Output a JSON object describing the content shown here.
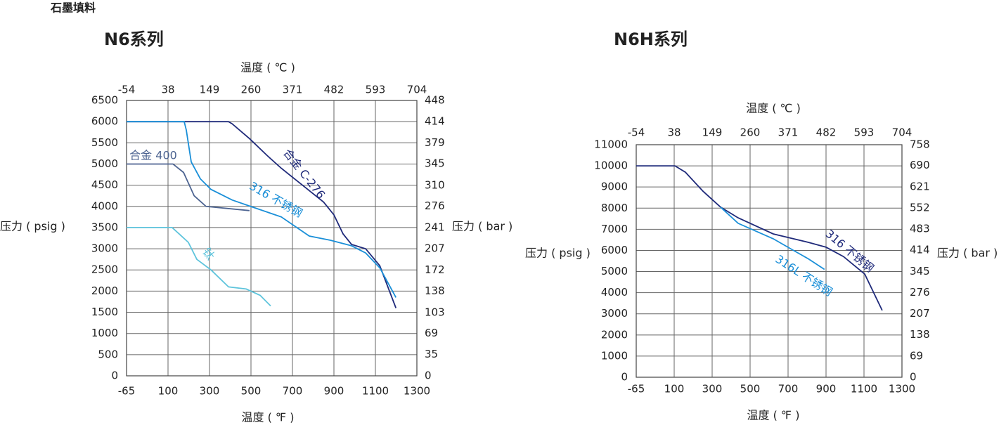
{
  "page_title": "石墨填料",
  "chart_data": [
    {
      "type": "line",
      "title": "N6系列",
      "x_label": "温度 ( ℉ )",
      "x2_label": "温度 ( ℃ )",
      "y_label": "压力 ( psig )",
      "y2_label": "压力 ( bar )",
      "xlim": [
        -65,
        1300
      ],
      "xticks": [
        -65,
        100,
        300,
        500,
        700,
        900,
        1100,
        1300
      ],
      "x2lim": [
        -54,
        704
      ],
      "x2ticks": [
        -54,
        38,
        149,
        260,
        371,
        482,
        593,
        704
      ],
      "ylim": [
        0,
        6500
      ],
      "yticks": [
        0,
        500,
        1000,
        1500,
        2000,
        2500,
        3000,
        3500,
        4000,
        4500,
        5000,
        5500,
        6000,
        6500
      ],
      "y2lim": [
        0,
        448
      ],
      "y2ticks": [
        0,
        35,
        69,
        103,
        138,
        172,
        207,
        241,
        276,
        310,
        345,
        379,
        414,
        448
      ],
      "grid": true,
      "series": [
        {
          "name": "合金 C-276",
          "color": "#1f2a7a",
          "x": [
            -65,
            392,
            409,
            493,
            578,
            646,
            748,
            850,
            900,
            944,
            985,
            1053,
            1121,
            1199
          ],
          "values": [
            6000,
            6000,
            5950,
            5600,
            5200,
            4900,
            4500,
            4100,
            3800,
            3350,
            3100,
            3000,
            2600,
            1600
          ]
        },
        {
          "name": "316 不锈钢",
          "color": "#1a8fd8",
          "x": [
            -65,
            178,
            188,
            212,
            256,
            307,
            409,
            510,
            646,
            781,
            883,
            985,
            1053,
            1121,
            1199
          ],
          "values": [
            6000,
            6000,
            5800,
            5050,
            4650,
            4400,
            4150,
            3980,
            3750,
            3300,
            3200,
            3070,
            2900,
            2550,
            1850
          ]
        },
        {
          "name": "合金 400",
          "color": "#4d6491",
          "x": [
            -65,
            124,
            175,
            226,
            283,
            493
          ],
          "values": [
            5000,
            5000,
            4800,
            4250,
            4000,
            3900
          ]
        },
        {
          "name": "钛",
          "color": "#5ec4dc",
          "x": [
            -65,
            120,
            198,
            239,
            307,
            392,
            477,
            544,
            595
          ],
          "values": [
            3500,
            3500,
            3150,
            2750,
            2500,
            2100,
            2050,
            1900,
            1650
          ]
        }
      ]
    },
    {
      "type": "line",
      "title": "N6H系列",
      "x_label": "温度 ( ℉ )",
      "x2_label": "温度 ( ℃ )",
      "y_label": "压力 ( psig )",
      "y2_label": "压力 ( bar )",
      "xlim": [
        -65,
        1300
      ],
      "xticks": [
        -65,
        100,
        300,
        500,
        700,
        900,
        1100,
        1300
      ],
      "x2lim": [
        -54,
        704
      ],
      "x2ticks": [
        -54,
        38,
        149,
        260,
        371,
        482,
        593,
        704
      ],
      "ylim": [
        0,
        11000
      ],
      "yticks": [
        0,
        1000,
        2000,
        3000,
        4000,
        5000,
        6000,
        7000,
        8000,
        9000,
        10000,
        11000
      ],
      "y2lim": [
        0,
        758
      ],
      "y2ticks": [
        0,
        69,
        138,
        207,
        276,
        345,
        414,
        483,
        552,
        621,
        690,
        758
      ],
      "grid": true,
      "series": [
        {
          "name": "316 不锈钢",
          "color": "#1f2a7a",
          "x": [
            -65,
            104,
            159,
            252,
            344,
            437,
            622,
            807,
            900,
            992,
            1104,
            1196
          ],
          "values": [
            10000,
            10000,
            9700,
            8800,
            8050,
            7540,
            6780,
            6380,
            6150,
            5710,
            4880,
            3160
          ]
        },
        {
          "name": "316L 不锈钢",
          "color": "#1a8fd8",
          "x": [
            344,
            437,
            622,
            733,
            807,
            892
          ],
          "values": [
            8050,
            7280,
            6550,
            5980,
            5600,
            5100
          ]
        }
      ]
    }
  ]
}
